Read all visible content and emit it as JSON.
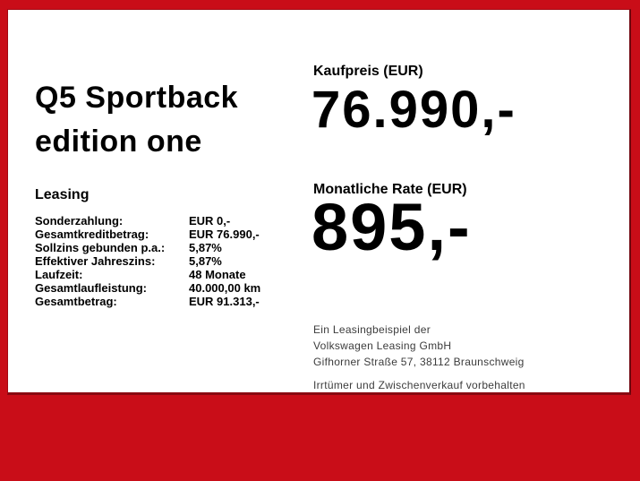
{
  "card": {
    "vehicle": {
      "title_line1": "Q5 Sportback",
      "title_line2": "edition one"
    },
    "leasing": {
      "heading": "Leasing",
      "rows": [
        {
          "label": "Sonderzahlung:",
          "value": "EUR 0,-"
        },
        {
          "label": "Gesamtkreditbetrag:",
          "value": "EUR 76.990,-"
        },
        {
          "label": "Sollzins gebunden p.a.:",
          "value": "5,87%"
        },
        {
          "label": "Effektiver Jahreszins:",
          "value": "5,87%"
        },
        {
          "label": "Laufzeit:",
          "value": "48 Monate"
        },
        {
          "label": "Gesamtlaufleistung:",
          "value": "40.000,00 km"
        },
        {
          "label": "Gesamtbetrag:",
          "value": "EUR 91.313,-"
        }
      ]
    },
    "price": {
      "label": "Kaufpreis (EUR)",
      "value": "76.990,-"
    },
    "rate": {
      "label": "Monatliche Rate (EUR)",
      "value": "895,-"
    },
    "disclaimer": {
      "line1": "Ein Leasingbeispiel der",
      "line2": "Volkswagen Leasing GmbH",
      "line3": "Gifhorner Straße 57, 38112 Braunschweig",
      "notice": "Irrtümer und Zwischenverkauf vorbehalten"
    }
  },
  "colors": {
    "frame_red": "#c90d18",
    "frame_inner_edge": "#6f060e",
    "text_black": "#000000",
    "fine_print_gray": "#3c3c3c"
  }
}
